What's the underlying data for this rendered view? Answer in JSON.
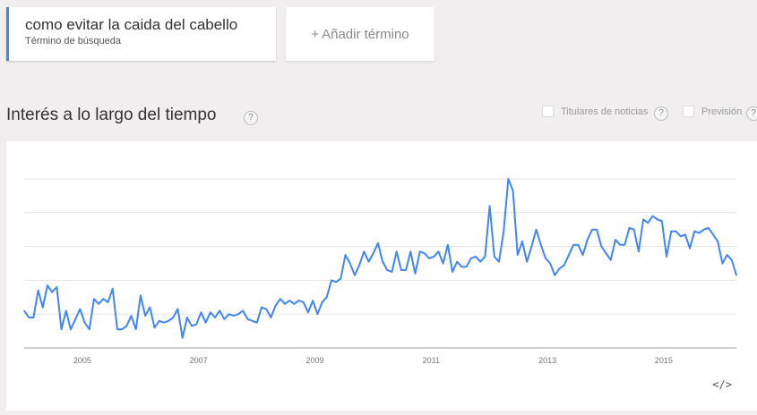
{
  "search_term": {
    "title": "como evitar la caida del cabello",
    "subtitle": "Término de búsqueda",
    "accent": "#4285f4"
  },
  "add_term": {
    "label": "Añadir término",
    "plus": "+"
  },
  "section": {
    "title": "Interés a lo largo del tiempo",
    "help": "?"
  },
  "options": {
    "news": {
      "label": "Titulares de noticias",
      "checked": false,
      "help": "?"
    },
    "forecast": {
      "label": "Previsión",
      "checked": false,
      "help": "?"
    }
  },
  "embed_icon": "</>",
  "chart_data": {
    "type": "line",
    "grid": true,
    "legend": "none",
    "ylim": [
      0,
      100
    ],
    "x_start": "2004-01",
    "x_end": "2016-04",
    "x_ticks": [
      "2005",
      "2007",
      "2009",
      "2011",
      "2013",
      "2015"
    ],
    "x_tick_dates": [
      "2005-01",
      "2007-01",
      "2009-01",
      "2011-01",
      "2013-01",
      "2015-01"
    ],
    "color": "#4285f4",
    "series": [
      {
        "values": [
          22,
          18,
          18,
          34,
          24,
          37,
          33,
          36,
          11,
          22,
          11,
          17,
          23,
          15,
          11,
          29,
          26,
          29,
          27,
          35,
          11,
          11,
          13,
          19,
          11,
          31,
          19,
          24,
          12,
          16,
          15,
          16,
          18,
          23,
          6,
          18,
          13,
          14,
          21,
          15,
          21,
          18,
          22,
          17,
          20,
          19,
          20,
          22,
          17,
          16,
          15,
          24,
          23,
          18,
          25,
          29,
          26,
          28,
          26,
          28,
          27,
          21,
          28,
          20,
          27,
          30,
          40,
          39,
          41,
          55,
          50,
          43,
          49,
          57,
          51,
          56,
          62,
          51,
          46,
          45,
          57,
          46,
          46,
          57,
          44,
          57,
          56,
          53,
          54,
          57,
          50,
          61,
          45,
          51,
          48,
          48,
          53,
          54,
          51,
          54,
          84,
          54,
          51,
          69,
          100,
          93,
          55,
          63,
          51,
          60,
          70,
          61,
          53,
          50,
          43,
          47,
          49,
          55,
          61,
          61,
          55,
          64,
          70,
          70,
          60,
          56,
          52,
          64,
          61,
          61,
          71,
          70,
          57,
          76,
          74,
          78,
          76,
          75,
          54,
          69,
          69,
          66,
          67,
          59,
          69,
          68,
          70,
          71,
          67,
          63,
          50,
          55,
          52,
          43
        ],
        "comment_note": ""
      }
    ]
  }
}
